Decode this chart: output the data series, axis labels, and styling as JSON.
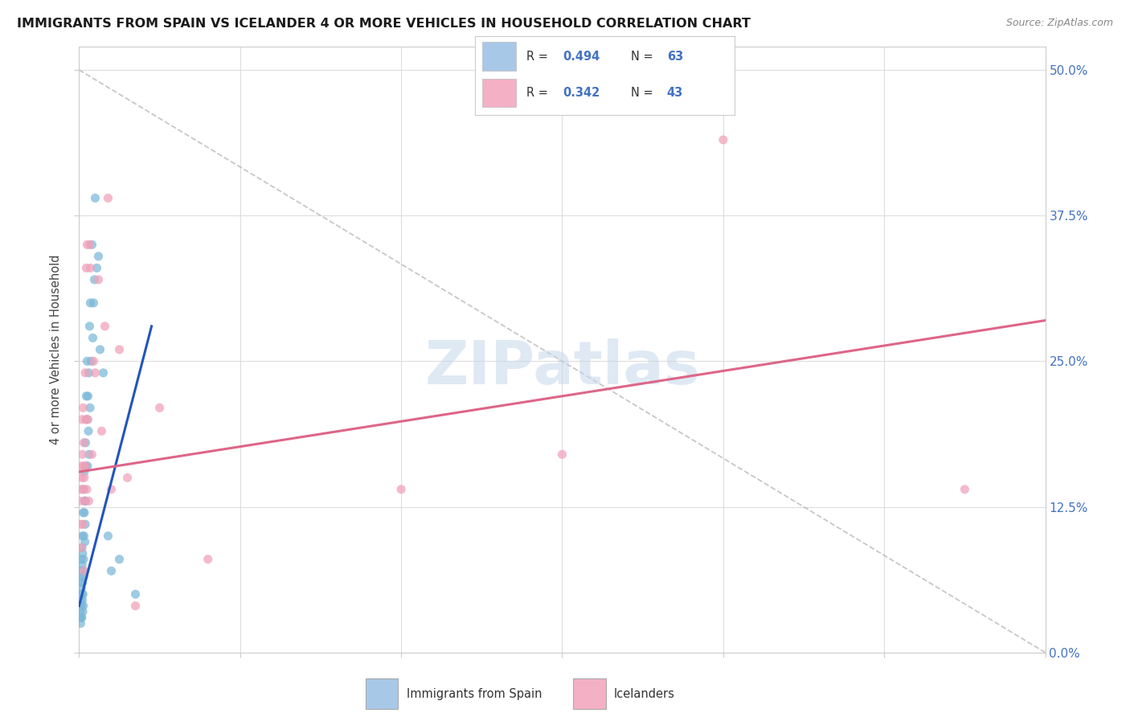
{
  "title": "IMMIGRANTS FROM SPAIN VS ICELANDER 4 OR MORE VEHICLES IN HOUSEHOLD CORRELATION CHART",
  "source": "Source: ZipAtlas.com",
  "ylabel": "4 or more Vehicles in Household",
  "legend1_label": "Immigrants from Spain",
  "legend2_label": "Icelanders",
  "R1": "0.494",
  "N1": "63",
  "R2": "0.342",
  "N2": "43",
  "xlim": [
    0.0,
    60.0
  ],
  "ylim": [
    0.0,
    52.0
  ],
  "ytick_values": [
    0.0,
    12.5,
    25.0,
    37.5,
    50.0
  ],
  "xtick_values": [
    0.0,
    10.0,
    20.0,
    30.0,
    40.0,
    50.0,
    60.0
  ],
  "blue_scatter_color": "#7ab8d9",
  "pink_scatter_color": "#f0a0b8",
  "blue_line_color": "#2255bb",
  "pink_line_color": "#dd6688",
  "legend_blue_color": "#a8c8e8",
  "legend_pink_color": "#f4b0c4",
  "watermark_text": "ZIPatlas",
  "watermark_color": "#c5d8ec",
  "blue_x": [
    0.05,
    0.07,
    0.08,
    0.09,
    0.1,
    0.1,
    0.11,
    0.12,
    0.13,
    0.14,
    0.15,
    0.15,
    0.16,
    0.17,
    0.18,
    0.18,
    0.19,
    0.2,
    0.2,
    0.21,
    0.22,
    0.23,
    0.24,
    0.25,
    0.25,
    0.26,
    0.27,
    0.28,
    0.3,
    0.3,
    0.32,
    0.33,
    0.35,
    0.36,
    0.38,
    0.4,
    0.4,
    0.42,
    0.45,
    0.48,
    0.5,
    0.52,
    0.55,
    0.58,
    0.6,
    0.62,
    0.65,
    0.68,
    0.7,
    0.75,
    0.8,
    0.85,
    0.9,
    0.95,
    1.0,
    1.1,
    1.2,
    1.3,
    1.5,
    1.8,
    2.0,
    2.5,
    3.5
  ],
  "blue_y": [
    3.0,
    4.0,
    5.0,
    3.5,
    2.5,
    6.0,
    4.5,
    7.0,
    3.0,
    5.5,
    8.0,
    4.0,
    6.5,
    3.0,
    9.0,
    5.0,
    7.5,
    10.0,
    4.5,
    6.0,
    8.5,
    3.5,
    5.0,
    12.0,
    7.0,
    4.0,
    6.5,
    8.0,
    14.0,
    10.0,
    15.5,
    12.0,
    13.0,
    9.5,
    11.0,
    18.0,
    13.0,
    16.0,
    22.0,
    20.0,
    25.0,
    16.0,
    22.0,
    19.0,
    24.0,
    17.0,
    28.0,
    21.0,
    30.0,
    25.0,
    35.0,
    27.0,
    30.0,
    32.0,
    39.0,
    33.0,
    34.0,
    26.0,
    24.0,
    10.0,
    7.0,
    8.0,
    5.0
  ],
  "pink_x": [
    0.05,
    0.08,
    0.1,
    0.12,
    0.15,
    0.17,
    0.18,
    0.2,
    0.22,
    0.25,
    0.25,
    0.28,
    0.3,
    0.3,
    0.32,
    0.35,
    0.38,
    0.4,
    0.42,
    0.45,
    0.48,
    0.5,
    0.55,
    0.6,
    0.65,
    0.7,
    0.8,
    0.9,
    1.0,
    1.2,
    1.4,
    1.6,
    1.8,
    2.0,
    2.5,
    3.0,
    3.5,
    5.0,
    8.0,
    20.0,
    30.0,
    40.0,
    55.0
  ],
  "pink_y": [
    13.0,
    11.0,
    16.0,
    14.0,
    9.0,
    15.0,
    20.0,
    17.0,
    11.0,
    14.0,
    21.0,
    16.0,
    7.0,
    18.0,
    15.0,
    13.0,
    24.0,
    16.0,
    20.0,
    33.0,
    14.0,
    35.0,
    20.0,
    13.0,
    35.0,
    33.0,
    17.0,
    25.0,
    24.0,
    32.0,
    19.0,
    28.0,
    39.0,
    14.0,
    26.0,
    15.0,
    4.0,
    21.0,
    8.0,
    14.0,
    17.0,
    44.0,
    14.0
  ],
  "blue_line_x0": 0.0,
  "blue_line_x1": 4.5,
  "blue_line_y0": 4.0,
  "blue_line_y1": 28.0,
  "pink_line_x0": 0.0,
  "pink_line_x1": 60.0,
  "pink_line_y0": 15.5,
  "pink_line_y1": 28.5,
  "diag_x0": 0.0,
  "diag_x1": 60.0,
  "diag_y0": 50.0,
  "diag_y1": 0.0,
  "title_fontsize": 11.5,
  "label_fontsize": 10.5,
  "tick_fontsize": 11
}
